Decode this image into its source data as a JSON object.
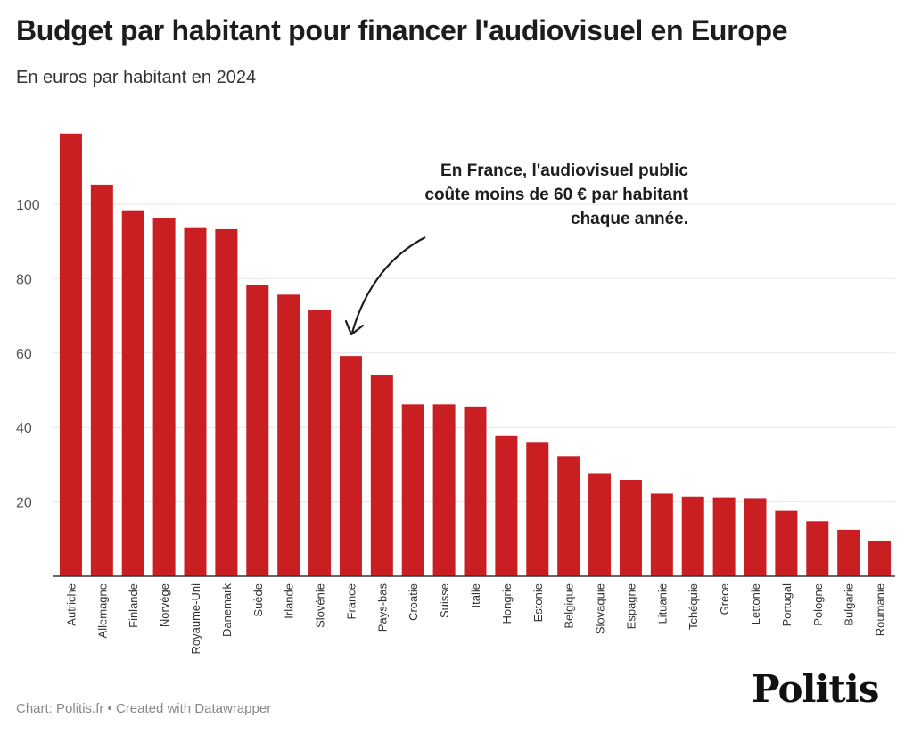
{
  "title": "Budget par habitant pour financer l'audiovisuel en Europe",
  "subtitle": "En euros par habitant en 2024",
  "annotation": {
    "line1": "En France, l'audiovisuel public",
    "line2": "coûte moins de 60 € par habitant",
    "line3": "chaque année."
  },
  "footer": "Chart: Politis.fr • Created with Datawrapper",
  "logo_text": "Politis",
  "colors": {
    "bar": "#c91f22",
    "grid": "#e6e6e6",
    "axis": "#333333",
    "text": "#333333"
  },
  "chart_data": {
    "type": "bar",
    "categories": [
      "Autriche",
      "Allemagne",
      "Finlande",
      "Norvège",
      "Royaume-Uni",
      "Danemark",
      "Suède",
      "Irlande",
      "Slovénie",
      "France",
      "Pays-bas",
      "Croatie",
      "Suisse",
      "Italie",
      "Hongrie",
      "Estonie",
      "Belgique",
      "Slovaquie",
      "Espagne",
      "Lituanie",
      "Tchéquie",
      "Grèce",
      "Lettonie",
      "Portugal",
      "Pologne",
      "Bulgarie",
      "Roumanie"
    ],
    "values": [
      119,
      105.3,
      98.4,
      96.4,
      93.6,
      93.3,
      78.2,
      75.7,
      71.5,
      59.2,
      54.2,
      46.2,
      46.2,
      45.6,
      37.7,
      35.9,
      32.3,
      27.7,
      25.9,
      22.2,
      21.4,
      21.2,
      21.0,
      17.6,
      14.8,
      12.5,
      9.6
    ],
    "yticks": [
      20,
      40,
      60,
      80,
      100
    ],
    "ylim": [
      0,
      120
    ],
    "grid": true
  }
}
